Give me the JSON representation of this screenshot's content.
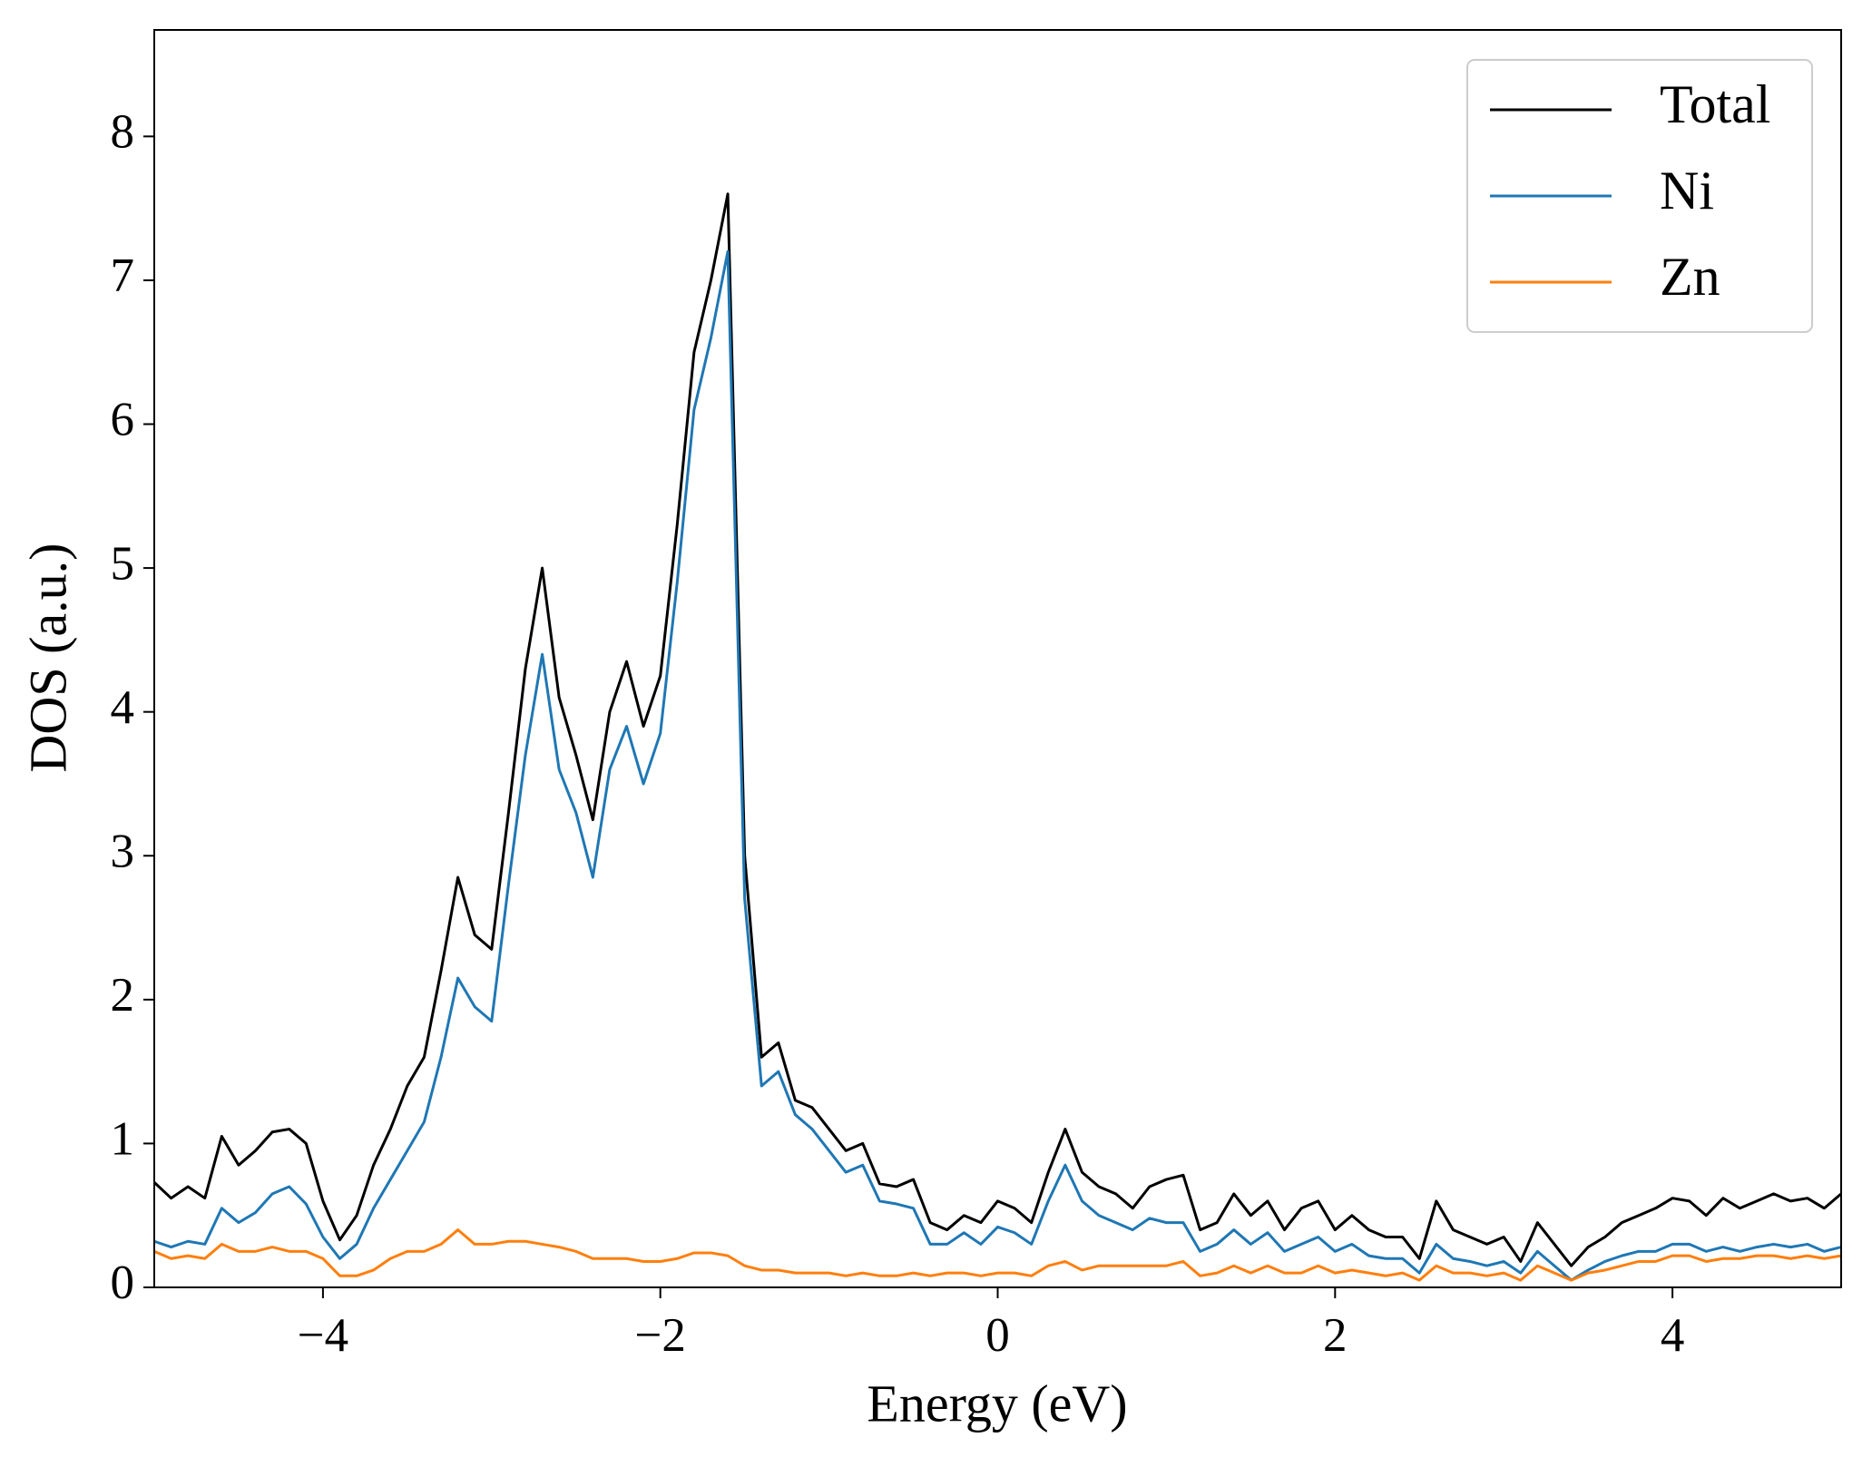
{
  "chart_data": {
    "type": "line",
    "xlabel": "Energy (eV)",
    "ylabel": "DOS (a.u.)",
    "x": [
      -5.0,
      -4.9,
      -4.8,
      -4.7,
      -4.6,
      -4.5,
      -4.4,
      -4.3,
      -4.2,
      -4.1,
      -4.0,
      -3.9,
      -3.8,
      -3.7,
      -3.6,
      -3.5,
      -3.4,
      -3.3,
      -3.2,
      -3.1,
      -3.0,
      -2.9,
      -2.8,
      -2.7,
      -2.6,
      -2.5,
      -2.4,
      -2.3,
      -2.2,
      -2.1,
      -2.0,
      -1.9,
      -1.8,
      -1.7,
      -1.6,
      -1.5,
      -1.4,
      -1.3,
      -1.2,
      -1.1,
      -1.0,
      -0.9,
      -0.8,
      -0.7,
      -0.6,
      -0.5,
      -0.4,
      -0.3,
      -0.2,
      -0.1,
      0.0,
      0.1,
      0.2,
      0.3,
      0.4,
      0.5,
      0.6,
      0.7,
      0.8,
      0.9,
      1.0,
      1.1,
      1.2,
      1.3,
      1.4,
      1.5,
      1.6,
      1.7,
      1.8,
      1.9,
      2.0,
      2.1,
      2.2,
      2.3,
      2.4,
      2.5,
      2.6,
      2.7,
      2.8,
      2.9,
      3.0,
      3.1,
      3.2,
      3.3,
      3.4,
      3.5,
      3.6,
      3.7,
      3.8,
      3.9,
      4.0,
      4.1,
      4.2,
      4.3,
      4.4,
      4.5,
      4.6,
      4.7,
      4.8,
      4.9,
      5.0
    ],
    "series": [
      {
        "name": "Total",
        "color": "#000000",
        "values": [
          0.73,
          0.62,
          0.7,
          0.62,
          1.05,
          0.85,
          0.95,
          1.08,
          1.1,
          1.0,
          0.6,
          0.33,
          0.5,
          0.85,
          1.1,
          1.4,
          1.6,
          2.2,
          2.85,
          2.45,
          2.35,
          3.3,
          4.3,
          5.0,
          4.1,
          3.7,
          3.25,
          4.0,
          4.35,
          3.9,
          4.25,
          5.3,
          6.5,
          7.0,
          7.6,
          3.0,
          1.6,
          1.7,
          1.3,
          1.25,
          1.1,
          0.95,
          1.0,
          0.72,
          0.7,
          0.75,
          0.45,
          0.4,
          0.5,
          0.45,
          0.6,
          0.55,
          0.45,
          0.8,
          1.1,
          0.8,
          0.7,
          0.65,
          0.55,
          0.7,
          0.75,
          0.78,
          0.4,
          0.45,
          0.65,
          0.5,
          0.6,
          0.4,
          0.55,
          0.6,
          0.4,
          0.5,
          0.4,
          0.35,
          0.35,
          0.2,
          0.6,
          0.4,
          0.35,
          0.3,
          0.35,
          0.18,
          0.45,
          0.3,
          0.15,
          0.28,
          0.35,
          0.45,
          0.5,
          0.55,
          0.62,
          0.6,
          0.5,
          0.62,
          0.55,
          0.6,
          0.65,
          0.6,
          0.62,
          0.55,
          0.65
        ]
      },
      {
        "name": "Ni",
        "color": "#1f77b4",
        "values": [
          0.32,
          0.28,
          0.32,
          0.3,
          0.55,
          0.45,
          0.52,
          0.65,
          0.7,
          0.58,
          0.35,
          0.2,
          0.3,
          0.55,
          0.75,
          0.95,
          1.15,
          1.6,
          2.15,
          1.95,
          1.85,
          2.8,
          3.7,
          4.4,
          3.6,
          3.3,
          2.85,
          3.6,
          3.9,
          3.5,
          3.85,
          4.9,
          6.1,
          6.6,
          7.2,
          2.7,
          1.4,
          1.5,
          1.2,
          1.1,
          0.95,
          0.8,
          0.85,
          0.6,
          0.58,
          0.55,
          0.3,
          0.3,
          0.38,
          0.3,
          0.42,
          0.38,
          0.3,
          0.6,
          0.85,
          0.6,
          0.5,
          0.45,
          0.4,
          0.48,
          0.45,
          0.45,
          0.25,
          0.3,
          0.4,
          0.3,
          0.38,
          0.25,
          0.3,
          0.35,
          0.25,
          0.3,
          0.22,
          0.2,
          0.2,
          0.1,
          0.3,
          0.2,
          0.18,
          0.15,
          0.18,
          0.1,
          0.25,
          0.15,
          0.05,
          0.12,
          0.18,
          0.22,
          0.25,
          0.25,
          0.3,
          0.3,
          0.25,
          0.28,
          0.25,
          0.28,
          0.3,
          0.28,
          0.3,
          0.25,
          0.28
        ]
      },
      {
        "name": "Zn",
        "color": "#ff7f0e",
        "values": [
          0.25,
          0.2,
          0.22,
          0.2,
          0.3,
          0.25,
          0.25,
          0.28,
          0.25,
          0.25,
          0.2,
          0.08,
          0.08,
          0.12,
          0.2,
          0.25,
          0.25,
          0.3,
          0.4,
          0.3,
          0.3,
          0.32,
          0.32,
          0.3,
          0.28,
          0.25,
          0.2,
          0.2,
          0.2,
          0.18,
          0.18,
          0.2,
          0.24,
          0.24,
          0.22,
          0.15,
          0.12,
          0.12,
          0.1,
          0.1,
          0.1,
          0.08,
          0.1,
          0.08,
          0.08,
          0.1,
          0.08,
          0.1,
          0.1,
          0.08,
          0.1,
          0.1,
          0.08,
          0.15,
          0.18,
          0.12,
          0.15,
          0.15,
          0.15,
          0.15,
          0.15,
          0.18,
          0.08,
          0.1,
          0.15,
          0.1,
          0.15,
          0.1,
          0.1,
          0.15,
          0.1,
          0.12,
          0.1,
          0.08,
          0.1,
          0.05,
          0.15,
          0.1,
          0.1,
          0.08,
          0.1,
          0.05,
          0.15,
          0.1,
          0.05,
          0.1,
          0.12,
          0.15,
          0.18,
          0.18,
          0.22,
          0.22,
          0.18,
          0.2,
          0.2,
          0.22,
          0.22,
          0.2,
          0.22,
          0.2,
          0.22
        ]
      }
    ],
    "xlim": [
      -5,
      5
    ],
    "ylim": [
      0,
      8.74
    ],
    "xticks": [
      {
        "value": -4,
        "label": "−4"
      },
      {
        "value": -2,
        "label": "−2"
      },
      0,
      2,
      4
    ],
    "yticks": [
      0,
      1,
      2,
      3,
      4,
      5,
      6,
      7,
      8
    ],
    "grid": false,
    "legend": "upper right"
  }
}
